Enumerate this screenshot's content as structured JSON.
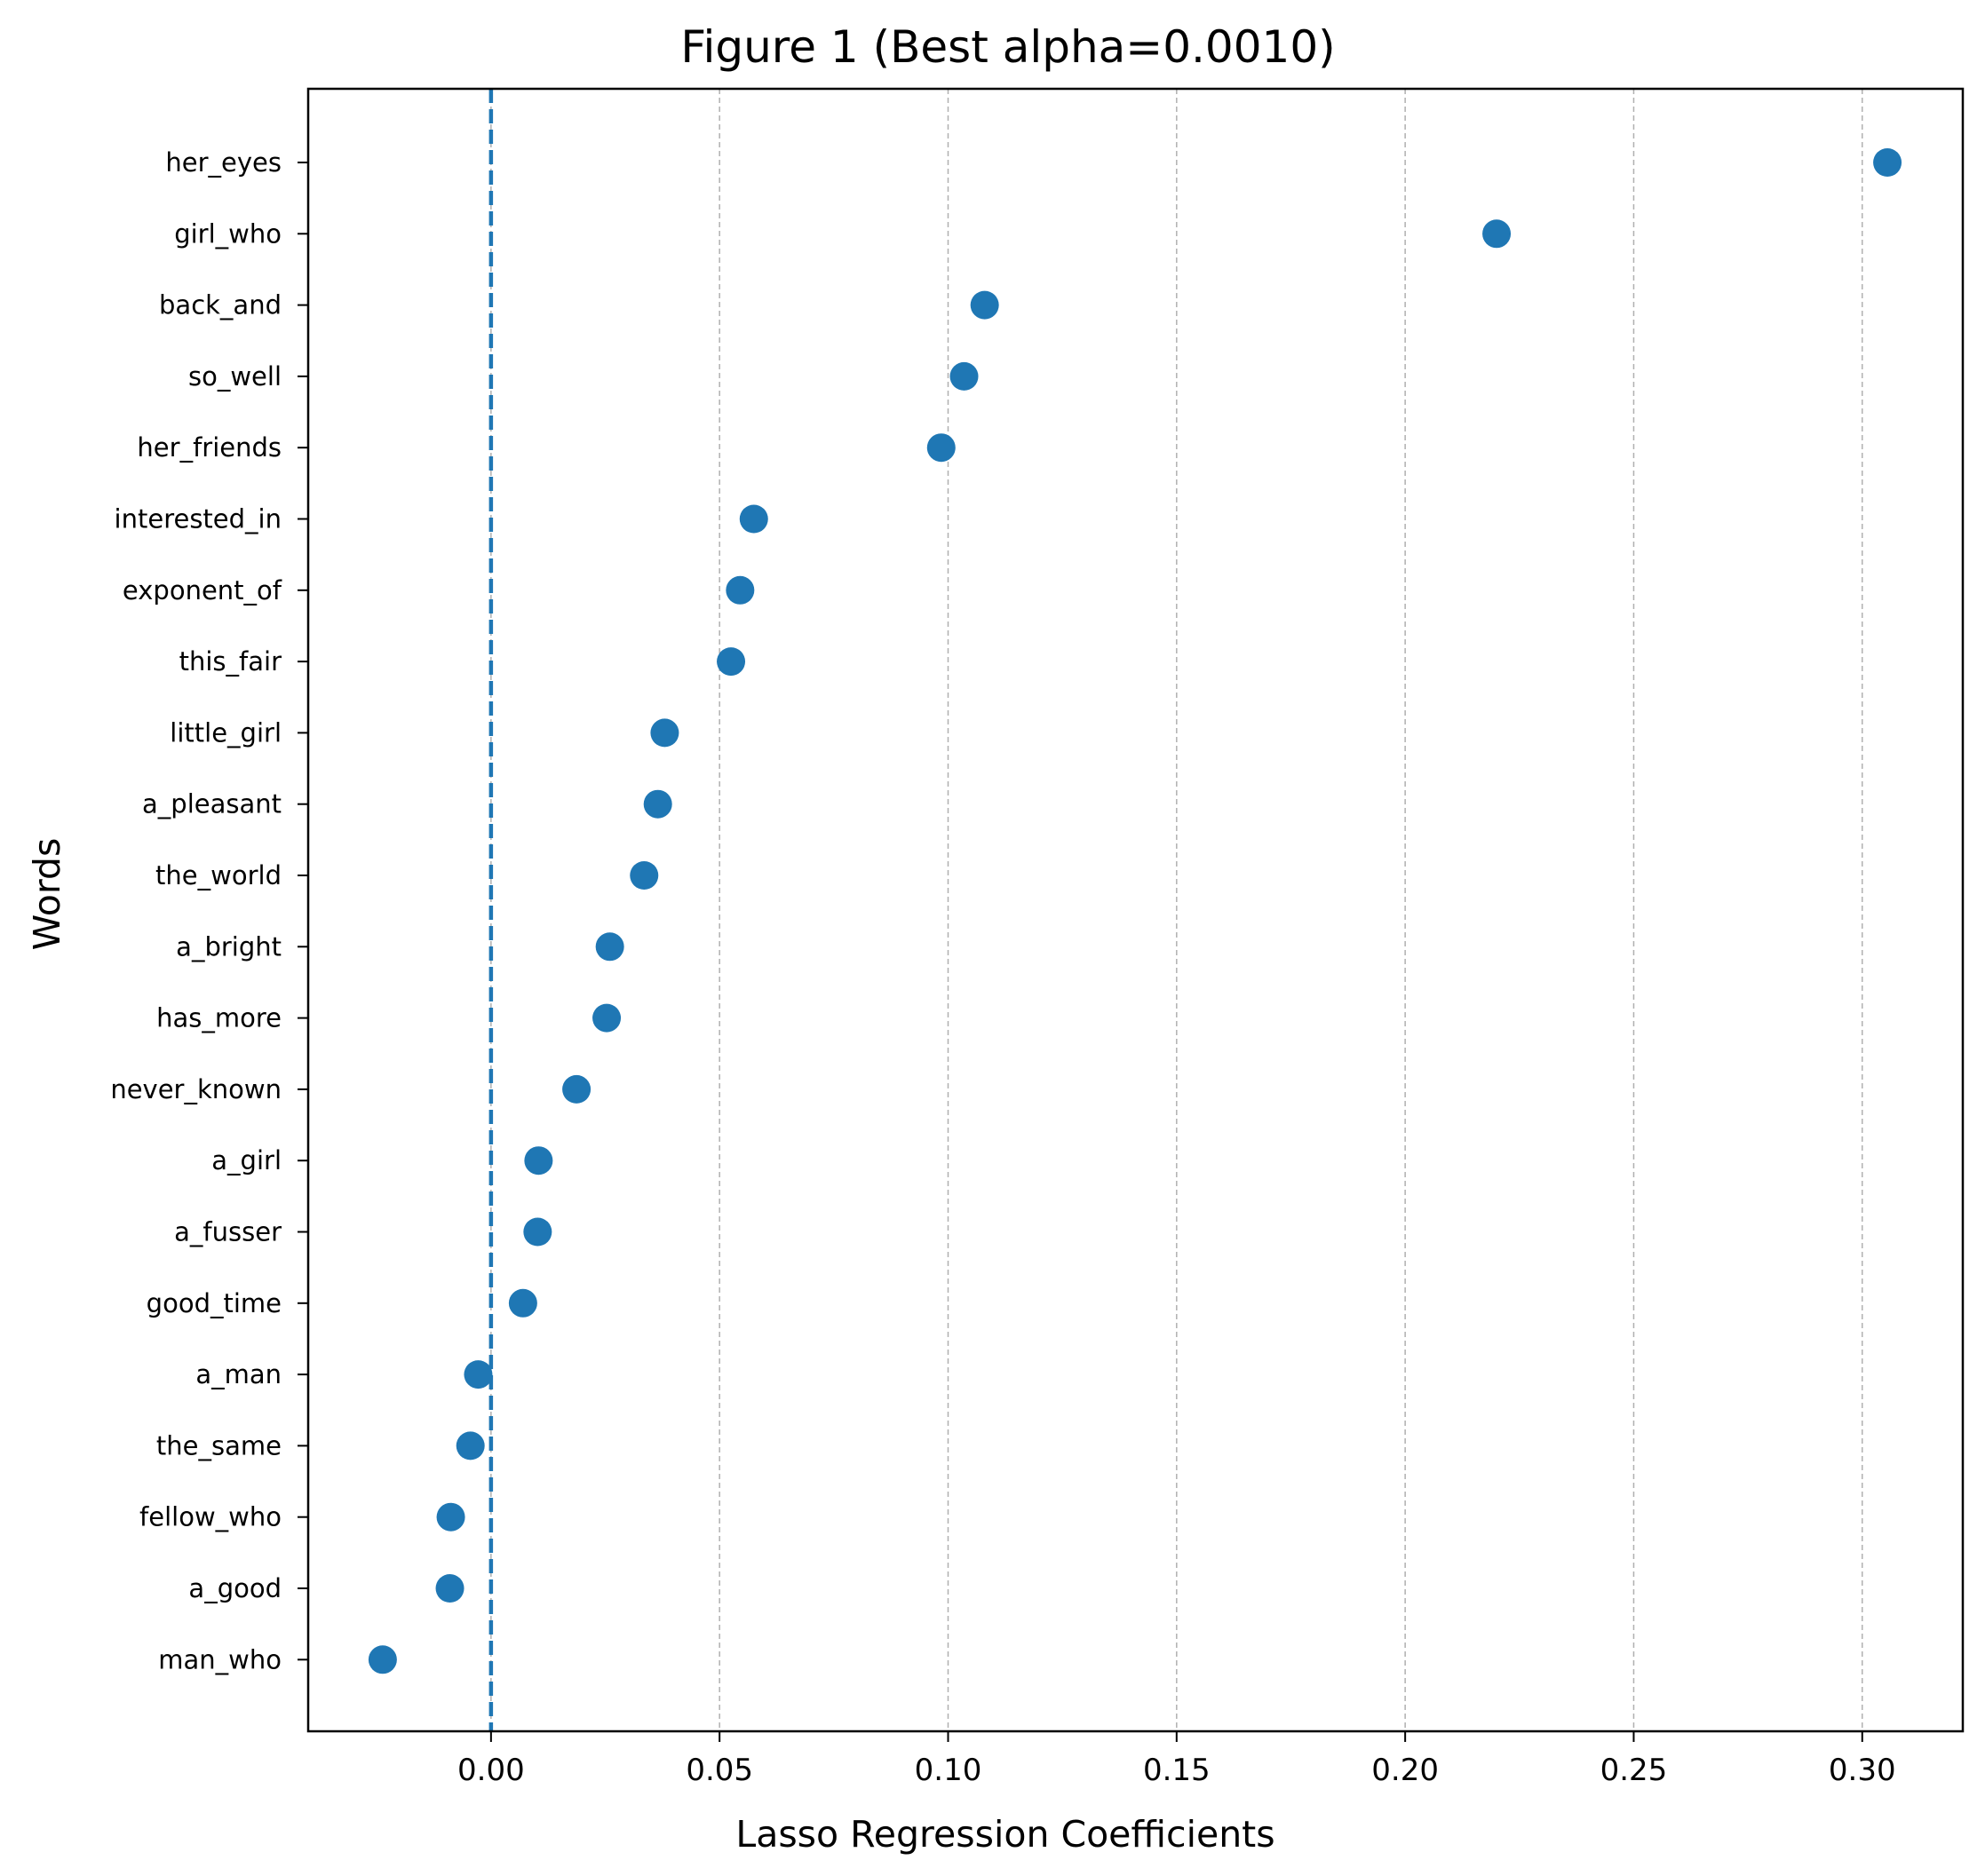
{
  "chart_data": {
    "type": "scatter",
    "title": "Figure 1 (Best alpha=0.0010)",
    "xlabel": "Lasso Regression Coefficients",
    "ylabel": "Words",
    "xlim": [
      -0.04,
      0.322
    ],
    "xticks": [
      0.0,
      0.05,
      0.1,
      0.15,
      0.2,
      0.25,
      0.3
    ],
    "xtick_labels": [
      "0.00",
      "0.05",
      "0.10",
      "0.15",
      "0.20",
      "0.25",
      "0.30"
    ],
    "grid": "x-axis dashed",
    "reference_line": {
      "x": 0,
      "style": "dashed"
    },
    "categories": [
      "her_eyes",
      "girl_who",
      "back_and",
      "so_well",
      "her_friends",
      "interested_in",
      "exponent_of",
      "this_fair",
      "little_girl",
      "a_pleasant",
      "the_world",
      "a_bright",
      "has_more",
      "never_known",
      "a_girl",
      "a_fusser",
      "good_time",
      "a_man",
      "the_same",
      "fellow_who",
      "a_good",
      "man_who"
    ],
    "values": [
      0.3055,
      0.22,
      0.108,
      0.1035,
      0.0985,
      0.0575,
      0.0545,
      0.0525,
      0.038,
      0.0365,
      0.0335,
      0.026,
      0.0253,
      0.0187,
      0.0104,
      0.0102,
      0.007,
      -0.0028,
      -0.0045,
      -0.0088,
      -0.009,
      -0.0237
    ],
    "marker_color": "#1f77b4",
    "grid_color": "#b0b0b0"
  }
}
